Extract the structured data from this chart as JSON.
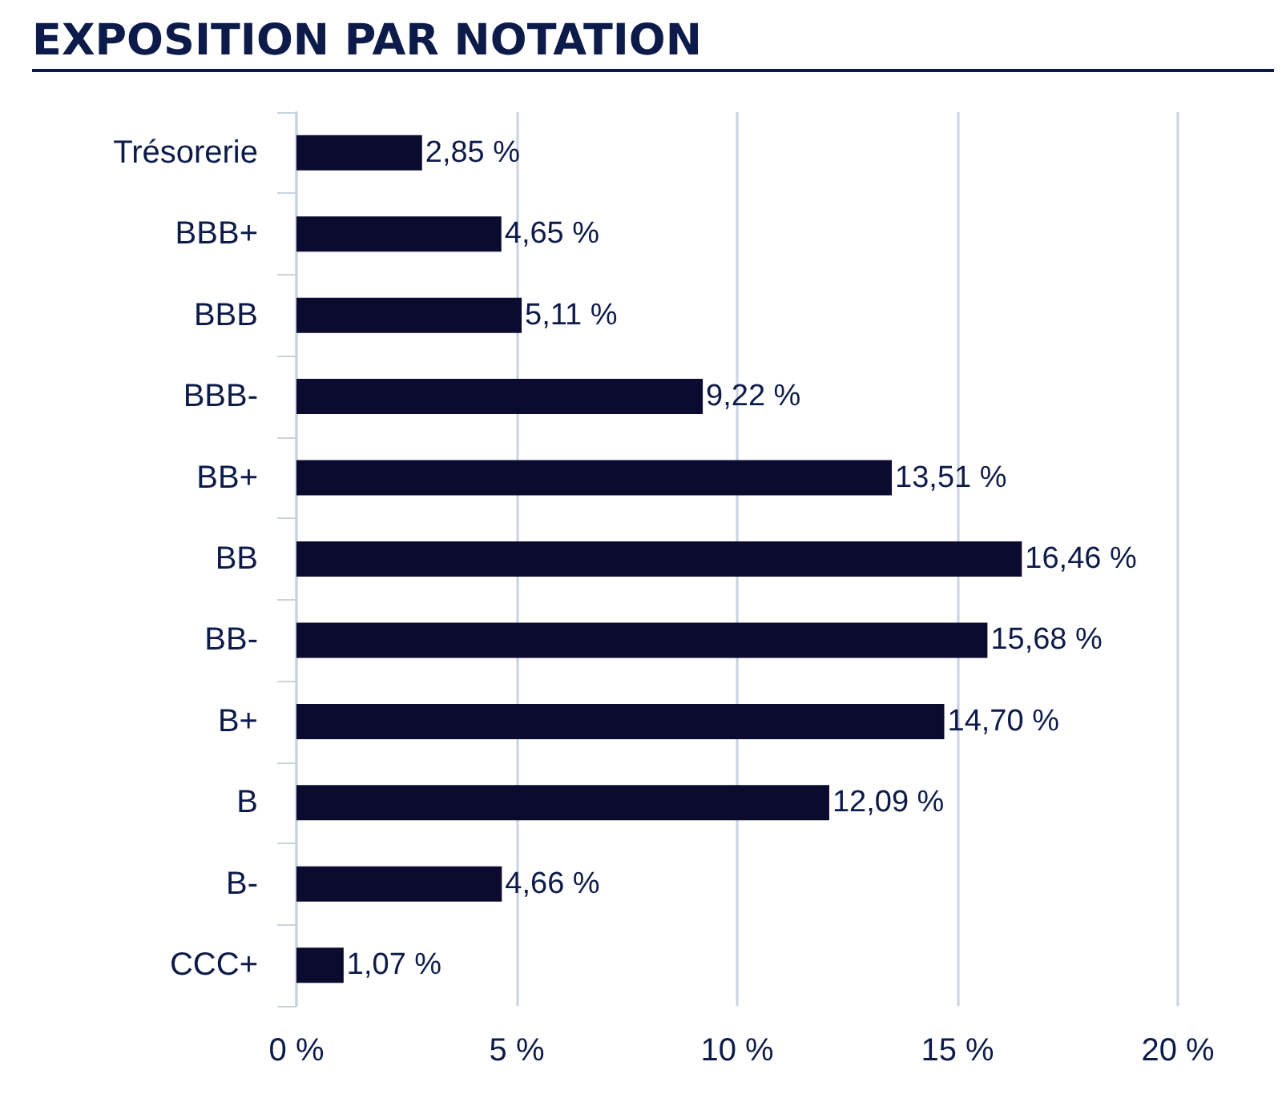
{
  "chart_data": {
    "type": "bar",
    "orientation": "horizontal",
    "title": "EXPOSITION PAR NOTATION",
    "categories": [
      "Trésorerie",
      "BBB+",
      "BBB",
      "BBB-",
      "BB+",
      "BB",
      "BB-",
      "B+",
      "B",
      "B-",
      "CCC+"
    ],
    "values": [
      2.85,
      4.65,
      5.11,
      9.22,
      13.51,
      16.46,
      15.68,
      14.7,
      12.09,
      4.66,
      1.07
    ],
    "value_labels": [
      "2,85 %",
      "4,65 %",
      "5,11 %",
      "9,22 %",
      "13,51 %",
      "16,46 %",
      "15,68 %",
      "14,70 %",
      "12,09 %",
      "4,66 %",
      "1,07 %"
    ],
    "color": "#0b0b30",
    "xlim": [
      0,
      20
    ],
    "xticks": [
      {
        "value": 0,
        "label": "0 %"
      },
      {
        "value": 5,
        "label": "5 %"
      },
      {
        "value": 10,
        "label": "10 %"
      },
      {
        "value": 15,
        "label": "15 %"
      },
      {
        "value": 20,
        "label": "20 %"
      }
    ],
    "grid": "x"
  }
}
